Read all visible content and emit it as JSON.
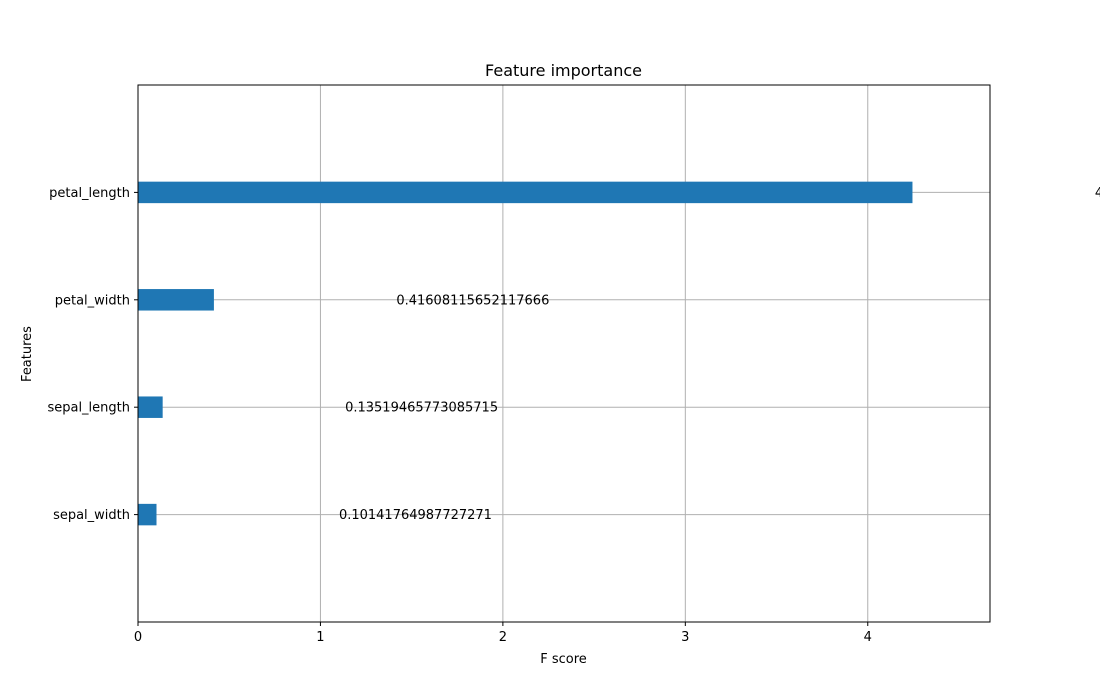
{
  "chart_data": {
    "type": "bar",
    "orientation": "horizontal",
    "title": "Feature importance",
    "xlabel": "F score",
    "ylabel": "Features",
    "categories": [
      "sepal_width",
      "sepal_length",
      "petal_width",
      "petal_length"
    ],
    "values": [
      0.10141764987727271,
      0.13519465773085715,
      0.41608115652117666,
      4.245
    ],
    "value_labels": [
      "0.10141764987727271",
      "0.13519465773085715",
      "0.41608115652117666",
      "4"
    ],
    "xlim": [
      0,
      4.67
    ],
    "xticks": [
      0,
      1,
      2,
      3,
      4
    ],
    "xtick_labels": [
      "0",
      "1",
      "2",
      "3",
      "4"
    ],
    "grid": true,
    "bar_color": "#1f77b4"
  }
}
